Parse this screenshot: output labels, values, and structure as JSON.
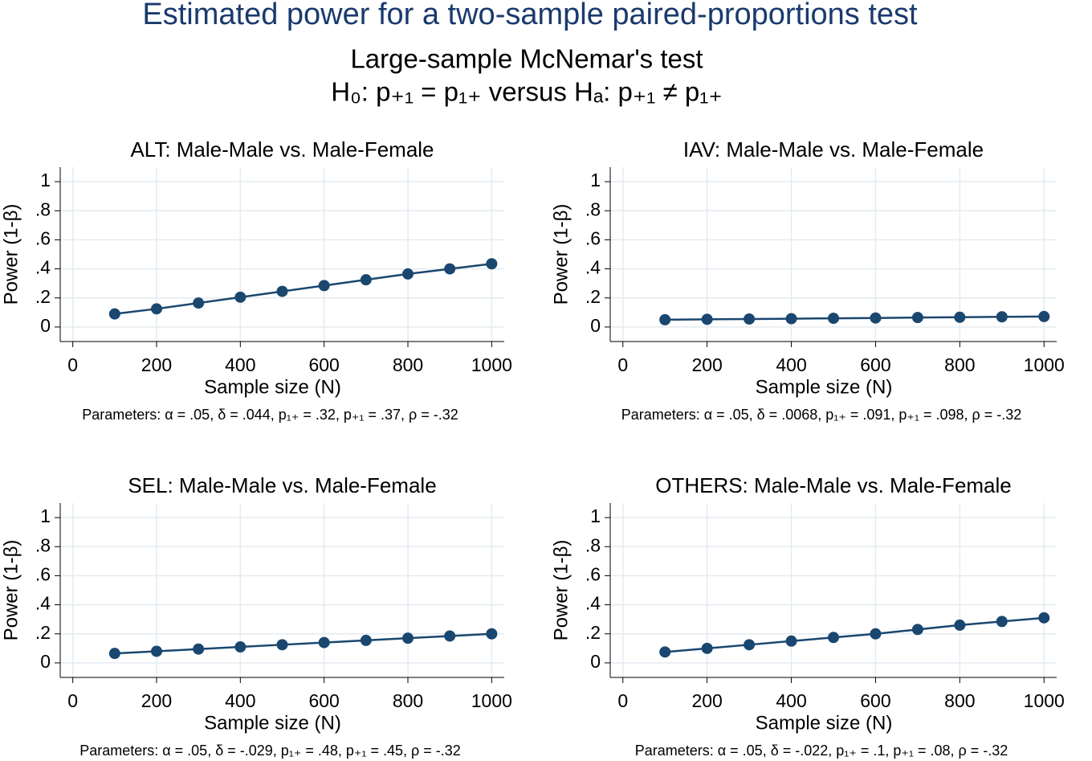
{
  "title": "Estimated power for a two-sample paired-proportions test",
  "subtitle": "Large-sample McNemar's test",
  "hypothesis": "H₀: p₊₁ = p₁₊  versus  Hₐ: p₊₁ ≠ p₁₊",
  "chart_data": [
    {
      "type": "line",
      "title": "ALT: Male-Male vs. Male-Female",
      "x_label": "Sample size (N)",
      "y_label": "Power (1-β)",
      "note": "Parameters: α = .05, δ = .044, p₁₊ = .32, p₊₁ = .37, ρ = -.32",
      "x": [
        100,
        200,
        300,
        400,
        500,
        600,
        700,
        800,
        900,
        1000
      ],
      "values": [
        0.09,
        0.125,
        0.165,
        0.205,
        0.245,
        0.285,
        0.325,
        0.365,
        0.4,
        0.435
      ],
      "color": "#1a476f",
      "xlim": [
        -30,
        1030
      ],
      "xticks": [
        0,
        200,
        400,
        600,
        800,
        1000
      ],
      "ylim": [
        -0.1,
        1.1
      ],
      "yticks": [
        0,
        {
          "value": 0.2,
          "label": ".2"
        },
        {
          "value": 0.4,
          "label": ".4"
        },
        {
          "value": 0.6,
          "label": ".6"
        },
        {
          "value": 0.8,
          "label": ".8"
        },
        1
      ],
      "grid": true
    },
    {
      "type": "line",
      "title": "IAV: Male-Male vs. Male-Female",
      "x_label": "Sample size (N)",
      "y_label": "Power (1-β)",
      "note": "Parameters: α = .05, δ = .0068, p₁₊ = .091, p₊₁ = .098, ρ = -.32",
      "x": [
        100,
        200,
        300,
        400,
        500,
        600,
        700,
        800,
        900,
        1000
      ],
      "values": [
        0.05,
        0.053,
        0.055,
        0.057,
        0.06,
        0.062,
        0.065,
        0.067,
        0.07,
        0.072
      ],
      "color": "#1a476f",
      "xlim": [
        -30,
        1030
      ],
      "xticks": [
        0,
        200,
        400,
        600,
        800,
        1000
      ],
      "ylim": [
        -0.1,
        1.1
      ],
      "yticks": [
        0,
        {
          "value": 0.2,
          "label": ".2"
        },
        {
          "value": 0.4,
          "label": ".4"
        },
        {
          "value": 0.6,
          "label": ".6"
        },
        {
          "value": 0.8,
          "label": ".8"
        },
        1
      ],
      "grid": true
    },
    {
      "type": "line",
      "title": "SEL: Male-Male vs. Male-Female",
      "x_label": "Sample size (N)",
      "y_label": "Power (1-β)",
      "note": "Parameters: α = .05, δ = -.029, p₁₊ = .48, p₊₁ = .45, ρ = -.32",
      "x": [
        100,
        200,
        300,
        400,
        500,
        600,
        700,
        800,
        900,
        1000
      ],
      "values": [
        0.065,
        0.08,
        0.095,
        0.11,
        0.125,
        0.14,
        0.155,
        0.17,
        0.185,
        0.2
      ],
      "color": "#1a476f",
      "xlim": [
        -30,
        1030
      ],
      "xticks": [
        0,
        200,
        400,
        600,
        800,
        1000
      ],
      "ylim": [
        -0.1,
        1.1
      ],
      "yticks": [
        0,
        {
          "value": 0.2,
          "label": ".2"
        },
        {
          "value": 0.4,
          "label": ".4"
        },
        {
          "value": 0.6,
          "label": ".6"
        },
        {
          "value": 0.8,
          "label": ".8"
        },
        1
      ],
      "grid": true
    },
    {
      "type": "line",
      "title": "OTHERS: Male-Male vs. Male-Female",
      "x_label": "Sample size (N)",
      "y_label": "Power (1-β)",
      "note": "Parameters: α = .05, δ = -.022, p₁₊ = .1, p₊₁ = .08, ρ = -.32",
      "x": [
        100,
        200,
        300,
        400,
        500,
        600,
        700,
        800,
        900,
        1000
      ],
      "values": [
        0.075,
        0.1,
        0.125,
        0.15,
        0.175,
        0.2,
        0.23,
        0.26,
        0.285,
        0.31
      ],
      "color": "#1a476f",
      "xlim": [
        -30,
        1030
      ],
      "xticks": [
        0,
        200,
        400,
        600,
        800,
        1000
      ],
      "ylim": [
        -0.1,
        1.1
      ],
      "yticks": [
        0,
        {
          "value": 0.2,
          "label": ".2"
        },
        {
          "value": 0.4,
          "label": ".4"
        },
        {
          "value": 0.6,
          "label": ".6"
        },
        {
          "value": 0.8,
          "label": ".8"
        },
        1
      ],
      "grid": true
    }
  ]
}
